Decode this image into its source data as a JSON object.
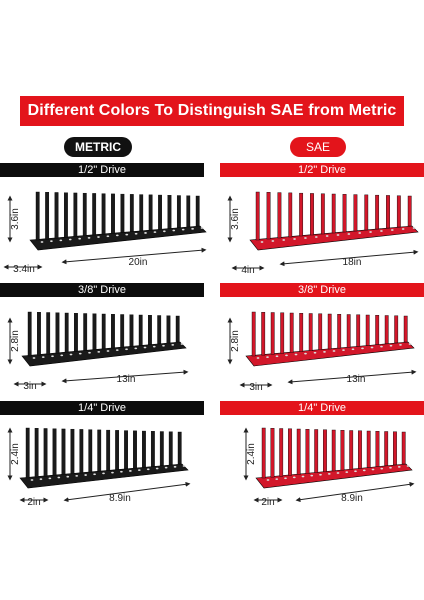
{
  "banner": "Different Colors To Distinguish SAE from Metric",
  "labels": {
    "metric": "METRIC",
    "sae": "SAE"
  },
  "colors": {
    "red": "#e3141b",
    "black": "#0c0c0c",
    "rack_black": "#1a1a1a",
    "rack_red": "#d2172a"
  },
  "metric": [
    {
      "drive": "1/2\" Drive",
      "height": "3.6in",
      "width": "3.4in",
      "length": "20in"
    },
    {
      "drive": "3/8\" Drive",
      "height": "2.8in",
      "width": "3in",
      "length": "13in"
    },
    {
      "drive": "1/4\" Drive",
      "height": "2.4in",
      "width": "2in",
      "length": "8.9in"
    }
  ],
  "sae": [
    {
      "drive": "1/2\" Drive",
      "height": "3.6in",
      "width": "4in",
      "length": "18in"
    },
    {
      "drive": "3/8\" Drive",
      "height": "2.8in",
      "width": "3in",
      "length": "13in"
    },
    {
      "drive": "1/4\" Drive",
      "height": "2.4in",
      "width": "2in",
      "length": "8.9in"
    }
  ]
}
